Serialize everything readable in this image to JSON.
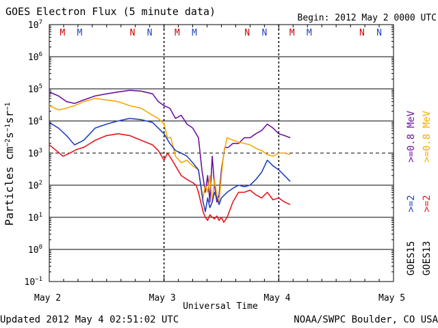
{
  "header": {
    "title": "GOES Electron Flux (5 minute data)",
    "begin": "Begin: 2012 May 2 0000 UTC"
  },
  "footer": {
    "updated": "Updated 2012 May  4 02:51:02 UTC",
    "credit": "NOAA/SWPC Boulder, CO USA"
  },
  "colors": {
    "goes13_ge08": "#f5a800",
    "goes13_ge2": "#e8141b",
    "goes15_ge08": "#6d0f9e",
    "goes15_ge2": "#1d3fbf",
    "marker_m": "#cc0000",
    "marker_n_red": "#cc0000",
    "marker_m_blue": "#1d3fbf",
    "marker_n_blue": "#1d3fbf"
  },
  "chart_data": {
    "type": "line",
    "title": "GOES Electron Flux (5 minute data)",
    "xlabel": "Universal Time",
    "ylabel": "Particles cm^-2 s^-1 sr^-1",
    "y_scale": "log",
    "ylim": [
      0.1,
      10000000
    ],
    "xlim": [
      0,
      3
    ],
    "x_ticks": [
      {
        "x": 0,
        "label": "May 2"
      },
      {
        "x": 1,
        "label": "May 3"
      },
      {
        "x": 2,
        "label": "May 4"
      },
      {
        "x": 3,
        "label": "May 5"
      }
    ],
    "y_ticks": [
      {
        "exp": 7,
        "base": "10",
        "sup": "7"
      },
      {
        "exp": 6,
        "base": "10",
        "sup": "6"
      },
      {
        "exp": 5,
        "base": "10",
        "sup": "5"
      },
      {
        "exp": 4,
        "base": "10",
        "sup": "4"
      },
      {
        "exp": 3,
        "base": "10",
        "sup": "3"
      },
      {
        "exp": 2,
        "base": "10",
        "sup": "2"
      },
      {
        "exp": 1,
        "base": "10",
        "sup": "1"
      },
      {
        "exp": 0,
        "base": "10",
        "sup": "0"
      },
      {
        "exp": -1,
        "base": "10",
        "sup": "-1"
      }
    ],
    "grid": "horizontal lines at each decade; dashed line at 10^3 threshold",
    "threshold": 1000,
    "markers": [
      {
        "x": 0.115,
        "label": "M",
        "sat": "GOES13"
      },
      {
        "x": 0.265,
        "label": "M",
        "sat": "GOES15"
      },
      {
        "x": 0.725,
        "label": "N",
        "sat": "GOES13"
      },
      {
        "x": 0.875,
        "label": "N",
        "sat": "GOES15"
      },
      {
        "x": 1.115,
        "label": "M",
        "sat": "GOES13"
      },
      {
        "x": 1.265,
        "label": "M",
        "sat": "GOES15"
      },
      {
        "x": 1.725,
        "label": "N",
        "sat": "GOES13"
      },
      {
        "x": 1.875,
        "label": "N",
        "sat": "GOES15"
      },
      {
        "x": 2.115,
        "label": "M",
        "sat": "GOES13"
      },
      {
        "x": 2.265,
        "label": "M",
        "sat": "GOES15"
      },
      {
        "x": 2.725,
        "label": "N",
        "sat": "GOES13"
      },
      {
        "x": 2.875,
        "label": "N",
        "sat": "GOES15"
      }
    ],
    "legend": {
      "position": "right",
      "groups": [
        {
          "sat": "GOES15",
          "items": [
            {
              "text": ">=0.8 MeV",
              "color_key": "goes15_ge08"
            },
            {
              "text": ">=2",
              "color_key": "goes15_ge2"
            }
          ]
        },
        {
          "sat": "GOES13",
          "items": [
            {
              "text": ">=0.8 MeV",
              "color_key": "goes13_ge08"
            },
            {
              "text": ">=2",
              "color_key": "goes13_ge2"
            }
          ]
        }
      ]
    },
    "series": [
      {
        "id": "goes15_ge08",
        "x": [
          0.0,
          0.08,
          0.15,
          0.22,
          0.3,
          0.4,
          0.5,
          0.6,
          0.7,
          0.8,
          0.9,
          0.95,
          1.0,
          1.05,
          1.1,
          1.15,
          1.2,
          1.25,
          1.3,
          1.33,
          1.36,
          1.38,
          1.4,
          1.42,
          1.44,
          1.46,
          1.48,
          1.5,
          1.53,
          1.56,
          1.6,
          1.65,
          1.7,
          1.75,
          1.8,
          1.85,
          1.9,
          1.95,
          2.0,
          2.05,
          2.1
        ],
        "y": [
          80000,
          60000,
          40000,
          35000,
          45000,
          60000,
          70000,
          80000,
          90000,
          85000,
          70000,
          40000,
          30000,
          25000,
          12000,
          15000,
          8000,
          6000,
          3000,
          300,
          60,
          200,
          30,
          800,
          100,
          30,
          50,
          300,
          1500,
          1500,
          2000,
          2000,
          3000,
          3000,
          4000,
          5000,
          8000,
          6000,
          4000,
          3500,
          3000
        ]
      },
      {
        "id": "goes13_ge08",
        "x": [
          0.0,
          0.08,
          0.15,
          0.22,
          0.3,
          0.4,
          0.5,
          0.6,
          0.7,
          0.8,
          0.9,
          0.95,
          1.0,
          1.03,
          1.06,
          1.1,
          1.15,
          1.2,
          1.25,
          1.3,
          1.32,
          1.34,
          1.36,
          1.38,
          1.4,
          1.42,
          1.44,
          1.46,
          1.48,
          1.5,
          1.52,
          1.55,
          1.6,
          1.65,
          1.7,
          1.75,
          1.8,
          1.85,
          1.9,
          1.95,
          2.0,
          2.05,
          2.1
        ],
        "y": [
          30000,
          22000,
          25000,
          30000,
          40000,
          50000,
          45000,
          40000,
          30000,
          25000,
          15000,
          12000,
          8000,
          3000,
          3000,
          800,
          500,
          600,
          400,
          300,
          100,
          40,
          100,
          60,
          200,
          30,
          150,
          50,
          30,
          200,
          1000,
          3000,
          2500,
          2200,
          2000,
          1800,
          1400,
          1200,
          900,
          800,
          1000,
          1000,
          900
        ]
      },
      {
        "id": "goes15_ge2",
        "x": [
          0.0,
          0.08,
          0.15,
          0.22,
          0.3,
          0.4,
          0.5,
          0.6,
          0.7,
          0.8,
          0.9,
          0.95,
          1.0,
          1.05,
          1.1,
          1.15,
          1.2,
          1.25,
          1.3,
          1.32,
          1.34,
          1.36,
          1.38,
          1.4,
          1.42,
          1.44,
          1.46,
          1.48,
          1.5,
          1.55,
          1.6,
          1.65,
          1.7,
          1.75,
          1.8,
          1.85,
          1.9,
          1.95,
          2.0,
          2.05,
          2.1
        ],
        "y": [
          9000,
          6000,
          3500,
          1800,
          2500,
          6000,
          8000,
          10000,
          12000,
          11000,
          9000,
          6000,
          4000,
          2000,
          1200,
          1000,
          800,
          500,
          300,
          100,
          30,
          15,
          40,
          20,
          30,
          60,
          40,
          25,
          40,
          60,
          80,
          100,
          90,
          100,
          150,
          250,
          600,
          400,
          300,
          200,
          130
        ]
      },
      {
        "id": "goes13_ge2",
        "x": [
          0.0,
          0.06,
          0.12,
          0.18,
          0.24,
          0.3,
          0.4,
          0.5,
          0.6,
          0.7,
          0.8,
          0.9,
          0.95,
          1.0,
          1.03,
          1.06,
          1.1,
          1.15,
          1.2,
          1.25,
          1.28,
          1.3,
          1.32,
          1.34,
          1.36,
          1.38,
          1.4,
          1.42,
          1.44,
          1.46,
          1.48,
          1.5,
          1.52,
          1.55,
          1.6,
          1.65,
          1.7,
          1.75,
          1.8,
          1.85,
          1.9,
          1.95,
          2.0,
          2.05,
          2.1
        ],
        "y": [
          1800,
          1200,
          800,
          1000,
          1300,
          1500,
          2500,
          3500,
          4000,
          3500,
          2500,
          1800,
          1200,
          600,
          1000,
          700,
          400,
          200,
          150,
          120,
          100,
          60,
          30,
          15,
          10,
          8,
          12,
          10,
          9,
          11,
          8,
          10,
          7,
          10,
          30,
          60,
          60,
          70,
          50,
          40,
          60,
          35,
          40,
          30,
          25
        ]
      }
    ]
  }
}
